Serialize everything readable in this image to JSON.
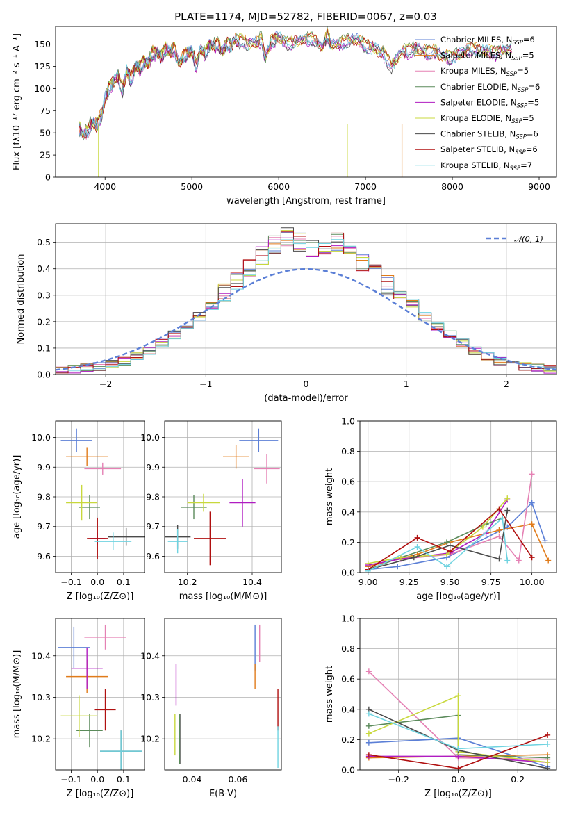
{
  "title": "PLATE=1174, MJD=52782, FIBERID=0067, z=0.03",
  "colors": [
    "#5b7fd6",
    "#e07b1a",
    "#e581b4",
    "#5a8a5a",
    "#b01cc1",
    "#c8d83c",
    "#4a4a4a",
    "#b01010",
    "#6fd3e0"
  ],
  "legend_top": [
    {
      "label": "Chabrier MILES, N",
      "sub": "SSP",
      "tail": "=6"
    },
    {
      "label": "Salpeter MILES, N",
      "sub": "SSP",
      "tail": "=5"
    },
    {
      "label": "Kroupa MILES, N",
      "sub": "SSP",
      "tail": "=5"
    },
    {
      "label": "Chabrier ELODIE, N",
      "sub": "SSP",
      "tail": "=6"
    },
    {
      "label": "Salpeter ELODIE, N",
      "sub": "SSP",
      "tail": "=5"
    },
    {
      "label": "Kroupa ELODIE, N",
      "sub": "SSP",
      "tail": "=5"
    },
    {
      "label": "Chabrier STELIB, N",
      "sub": "SSP",
      "tail": "=6"
    },
    {
      "label": "Salpeter STELIB, N",
      "sub": "SSP",
      "tail": "=6"
    },
    {
      "label": "Kroupa STELIB, N",
      "sub": "SSP",
      "tail": "=7"
    }
  ],
  "legend_hist": "𝒩(0, 1)",
  "chart_data": [
    {
      "id": "spectrum",
      "type": "line",
      "xlabel": "wavelength [Angstrom, rest frame]",
      "ylabel": "Flux [fλ10⁻¹⁷ erg cm⁻² s⁻¹ A⁻¹]",
      "xlim": [
        3430,
        9200
      ],
      "ylim": [
        0,
        170
      ],
      "xticks": [
        4000,
        5000,
        6000,
        7000,
        8000,
        9000
      ],
      "yticks": [
        0,
        25,
        50,
        75,
        100,
        125,
        150
      ],
      "x": [
        3700,
        3750,
        3800,
        3850,
        3900,
        3950,
        4000,
        4050,
        4100,
        4150,
        4200,
        4250,
        4300,
        4350,
        4400,
        4450,
        4500,
        4550,
        4600,
        4650,
        4700,
        4750,
        4800,
        4850,
        4900,
        4950,
        5000,
        5050,
        5100,
        5150,
        5200,
        5250,
        5300,
        5350,
        5400,
        5450,
        5500,
        5600,
        5700,
        5800,
        5850,
        5900,
        5950,
        6000,
        6100,
        6200,
        6300,
        6400,
        6500,
        6560,
        6600,
        6700,
        6800,
        6900,
        7000,
        7100,
        7200,
        7300,
        7400,
        7500,
        7600,
        7700,
        7800,
        7900,
        8000,
        8100,
        8200,
        8300,
        8400,
        8500,
        8600,
        8700
      ],
      "y": [
        55,
        48,
        52,
        62,
        58,
        68,
        88,
        102,
        108,
        115,
        98,
        120,
        110,
        125,
        123,
        130,
        128,
        140,
        140,
        135,
        145,
        140,
        145,
        128,
        135,
        140,
        142,
        125,
        145,
        138,
        148,
        148,
        150,
        140,
        150,
        148,
        155,
        152,
        150,
        155,
        135,
        150,
        155,
        158,
        150,
        152,
        155,
        155,
        145,
        160,
        148,
        150,
        153,
        155,
        148,
        145,
        140,
        125,
        140,
        143,
        145,
        140,
        142,
        135,
        135,
        140,
        145,
        143,
        142,
        140,
        143,
        145
      ],
      "dips": [
        {
          "x": 3925,
          "model": "Kroupa ELODIE"
        },
        {
          "x": 6790,
          "model": "Kroupa ELODIE"
        },
        {
          "x": 7420,
          "model": "Salpeter MILES"
        }
      ]
    },
    {
      "id": "residual_hist",
      "type": "bar",
      "xlabel": "(data-model)/error",
      "ylabel": "Normed distribution",
      "xlim": [
        -2.5,
        2.5
      ],
      "ylim": [
        0,
        0.57
      ],
      "xticks": [
        -2,
        -1,
        0,
        1,
        2
      ],
      "yticks": [
        0.0,
        0.1,
        0.2,
        0.3,
        0.4,
        0.5
      ],
      "bin_edges_start": -2.5,
      "bin_width": 0.125,
      "base_values": [
        0.02,
        0.02,
        0.025,
        0.03,
        0.04,
        0.05,
        0.07,
        0.09,
        0.12,
        0.15,
        0.19,
        0.22,
        0.26,
        0.31,
        0.35,
        0.4,
        0.45,
        0.49,
        0.52,
        0.5,
        0.48,
        0.49,
        0.5,
        0.47,
        0.42,
        0.38,
        0.34,
        0.3,
        0.27,
        0.22,
        0.18,
        0.15,
        0.12,
        0.09,
        0.07,
        0.05,
        0.04,
        0.03,
        0.025,
        0.02
      ],
      "gaussian": {
        "mu": 0,
        "sigma": 1,
        "label": "𝒩(0, 1)"
      }
    },
    {
      "id": "age_vs_Z",
      "type": "scatter",
      "xlabel": "Z [log₁₀(Z/Z⊙)]",
      "ylabel": "age  [log₁₀(age/yr)]",
      "xlim": [
        -0.16,
        0.18
      ],
      "ylim": [
        9.545,
        10.055
      ],
      "xticks": [
        -0.1,
        0.0,
        0.1
      ],
      "yticks": [
        9.6,
        9.7,
        9.8,
        9.9,
        10.0
      ],
      "points": [
        {
          "x": -0.08,
          "y": 9.99,
          "xerr": 0.06,
          "yerr": 0.04
        },
        {
          "x": -0.04,
          "y": 9.935,
          "xerr": 0.08,
          "yerr": 0.03
        },
        {
          "x": 0.02,
          "y": 9.895,
          "xerr": 0.07,
          "yerr": 0.02
        },
        {
          "x": -0.03,
          "y": 9.765,
          "xerr": 0.04,
          "yerr": 0.04
        },
        {
          "x": 0.0,
          "y": 9.66,
          "xerr": 0.03,
          "yerr": 0.02
        },
        {
          "x": -0.06,
          "y": 9.78,
          "xerr": 0.06,
          "yerr": 0.06
        },
        {
          "x": 0.11,
          "y": 9.665,
          "xerr": 0.07,
          "yerr": 0.03
        },
        {
          "x": 0.0,
          "y": 9.66,
          "xerr": 0.04,
          "yerr": 0.07
        },
        {
          "x": 0.06,
          "y": 9.65,
          "xerr": 0.07,
          "yerr": 0.03
        }
      ]
    },
    {
      "id": "age_vs_mass",
      "type": "scatter",
      "xlabel": "mass [log₁₀(M/M⊙)]",
      "ylabel": "",
      "xlim": [
        10.13,
        10.49
      ],
      "ylim": [
        9.545,
        10.055
      ],
      "xticks": [
        10.2,
        10.4
      ],
      "yticks": [
        9.6,
        9.7,
        9.8,
        9.9,
        10.0
      ],
      "points": [
        {
          "x": 10.42,
          "y": 9.99,
          "xerr": 0.06,
          "yerr": 0.04
        },
        {
          "x": 10.35,
          "y": 9.935,
          "xerr": 0.04,
          "yerr": 0.04
        },
        {
          "x": 10.445,
          "y": 9.895,
          "xerr": 0.04,
          "yerr": 0.05
        },
        {
          "x": 10.22,
          "y": 9.765,
          "xerr": 0.04,
          "yerr": 0.04
        },
        {
          "x": 10.37,
          "y": 9.78,
          "xerr": 0.04,
          "yerr": 0.08
        },
        {
          "x": 10.25,
          "y": 9.78,
          "xerr": 0.05,
          "yerr": 0.03
        },
        {
          "x": 10.17,
          "y": 9.665,
          "xerr": 0.04,
          "yerr": 0.04
        },
        {
          "x": 10.27,
          "y": 9.66,
          "xerr": 0.05,
          "yerr": 0.09
        },
        {
          "x": 10.17,
          "y": 9.65,
          "xerr": 0.03,
          "yerr": 0.04
        }
      ]
    },
    {
      "id": "weight_vs_age",
      "type": "line",
      "xlabel": "age  [log₁₀(age/yr)]",
      "ylabel": "mass weight",
      "xlim": [
        8.95,
        10.15
      ],
      "ylim": [
        0,
        1.0
      ],
      "xticks": [
        9.0,
        9.25,
        9.5,
        9.75,
        10.0
      ],
      "yticks": [
        0.0,
        0.2,
        0.4,
        0.6,
        0.8,
        1.0
      ],
      "series": [
        {
          "x": [
            9.0,
            9.18,
            9.48,
            9.85,
            10.0,
            10.08
          ],
          "y": [
            0.02,
            0.04,
            0.1,
            0.3,
            0.46,
            0.21
          ]
        },
        {
          "x": [
            9.0,
            9.3,
            9.5,
            9.8,
            10.0,
            10.1
          ],
          "y": [
            0.04,
            0.12,
            0.2,
            0.28,
            0.32,
            0.08
          ]
        },
        {
          "x": [
            9.0,
            9.2,
            9.5,
            9.8,
            9.92,
            10.0
          ],
          "y": [
            0.05,
            0.09,
            0.12,
            0.24,
            0.08,
            0.65
          ]
        },
        {
          "x": [
            9.0,
            9.2,
            9.48,
            9.72,
            9.82
          ],
          "y": [
            0.02,
            0.1,
            0.2,
            0.32,
            0.36
          ]
        },
        {
          "x": [
            9.0,
            9.2,
            9.5,
            9.72,
            9.85
          ],
          "y": [
            0.05,
            0.09,
            0.13,
            0.26,
            0.48
          ]
        },
        {
          "x": [
            9.0,
            9.2,
            9.48,
            9.7,
            9.85
          ],
          "y": [
            0.06,
            0.1,
            0.12,
            0.3,
            0.49
          ]
        },
        {
          "x": [
            9.0,
            9.28,
            9.5,
            9.8,
            9.85
          ],
          "y": [
            0.02,
            0.1,
            0.18,
            0.09,
            0.41
          ]
        },
        {
          "x": [
            9.0,
            9.3,
            9.5,
            9.8,
            10.0
          ],
          "y": [
            0.02,
            0.23,
            0.14,
            0.42,
            0.1
          ]
        },
        {
          "x": [
            9.0,
            9.3,
            9.48,
            9.82,
            9.85
          ],
          "y": [
            0.01,
            0.17,
            0.04,
            0.36,
            0.08
          ]
        }
      ]
    },
    {
      "id": "mass_vs_Z",
      "type": "scatter",
      "xlabel": "Z [log₁₀(Z/Z⊙)]",
      "ylabel": "mass [log₁₀(M/M⊙)]",
      "xlim": [
        -0.16,
        0.18
      ],
      "ylim": [
        10.125,
        10.49
      ],
      "xticks": [
        -0.1,
        0.0,
        0.1
      ],
      "yticks": [
        10.2,
        10.3,
        10.4
      ],
      "points": [
        {
          "x": -0.09,
          "y": 10.42,
          "xerr": 0.06,
          "yerr": 0.05
        },
        {
          "x": -0.04,
          "y": 10.35,
          "xerr": 0.08,
          "yerr": 0.04
        },
        {
          "x": 0.03,
          "y": 10.445,
          "xerr": 0.08,
          "yerr": 0.03
        },
        {
          "x": -0.03,
          "y": 10.22,
          "xerr": 0.05,
          "yerr": 0.04
        },
        {
          "x": -0.04,
          "y": 10.37,
          "xerr": 0.06,
          "yerr": 0.05
        },
        {
          "x": -0.07,
          "y": 10.255,
          "xerr": 0.07,
          "yerr": 0.05
        },
        {
          "x": 0.09,
          "y": 10.17,
          "xerr": 0.08,
          "yerr": 0.05
        },
        {
          "x": 0.03,
          "y": 10.27,
          "xerr": 0.04,
          "yerr": 0.05
        },
        {
          "x": 0.09,
          "y": 10.17,
          "xerr": 0.08,
          "yerr": 0.05
        }
      ]
    },
    {
      "id": "mass_vs_ebv",
      "type": "scatter",
      "xlabel": "E(B-V)",
      "ylabel": "",
      "xlim": [
        0.028,
        0.079
      ],
      "ylim": [
        10.125,
        10.49
      ],
      "xticks": [
        0.04,
        0.06
      ],
      "yticks": [
        10.2,
        10.3,
        10.4
      ],
      "points": [
        {
          "x": 0.0675,
          "y": 10.42,
          "yerr": 0.055
        },
        {
          "x": 0.0675,
          "y": 10.35,
          "yerr": 0.03
        },
        {
          "x": 0.0695,
          "y": 10.43,
          "yerr": 0.045
        },
        {
          "x": 0.0345,
          "y": 10.2,
          "yerr": 0.06
        },
        {
          "x": 0.033,
          "y": 10.33,
          "yerr": 0.05
        },
        {
          "x": 0.0325,
          "y": 10.21,
          "yerr": 0.05
        },
        {
          "x": 0.035,
          "y": 10.2,
          "yerr": 0.06
        },
        {
          "x": 0.0775,
          "y": 10.27,
          "yerr": 0.05
        },
        {
          "x": 0.0775,
          "y": 10.18,
          "yerr": 0.05
        }
      ]
    },
    {
      "id": "weight_vs_Z",
      "type": "line",
      "xlabel": "Z [log₁₀(Z/Z⊙)]",
      "ylabel": "mass weight",
      "xlim": [
        -0.33,
        0.33
      ],
      "ylim": [
        0,
        1.0
      ],
      "xticks": [
        -0.2,
        0.0,
        0.2
      ],
      "yticks": [
        0.0,
        0.2,
        0.4,
        0.6,
        0.8,
        1.0
      ],
      "series": [
        {
          "x": [
            -0.3,
            0.0,
            0.3
          ],
          "y": [
            0.18,
            0.21,
            0.02
          ]
        },
        {
          "x": [
            -0.3,
            0.0,
            0.3
          ],
          "y": [
            0.08,
            0.09,
            0.1
          ]
        },
        {
          "x": [
            -0.3,
            0.0,
            0.3
          ],
          "y": [
            0.65,
            0.08,
            0.07
          ]
        },
        {
          "x": [
            -0.3,
            0.0,
            0.0,
            0.3
          ],
          "y": [
            0.29,
            0.36,
            0.1,
            0.08
          ]
        },
        {
          "x": [
            -0.3,
            0.0,
            0.3
          ],
          "y": [
            0.09,
            0.09,
            0.05
          ]
        },
        {
          "x": [
            -0.3,
            0.0,
            0.0,
            0.3
          ],
          "y": [
            0.24,
            0.49,
            0.12,
            0.05
          ]
        },
        {
          "x": [
            -0.3,
            0.0,
            0.3
          ],
          "y": [
            0.4,
            0.13,
            0.01
          ]
        },
        {
          "x": [
            -0.3,
            0.0,
            0.3
          ],
          "y": [
            0.1,
            0.01,
            0.23
          ]
        },
        {
          "x": [
            -0.3,
            0.0,
            0.3
          ],
          "y": [
            0.37,
            0.14,
            0.17
          ]
        }
      ]
    }
  ]
}
